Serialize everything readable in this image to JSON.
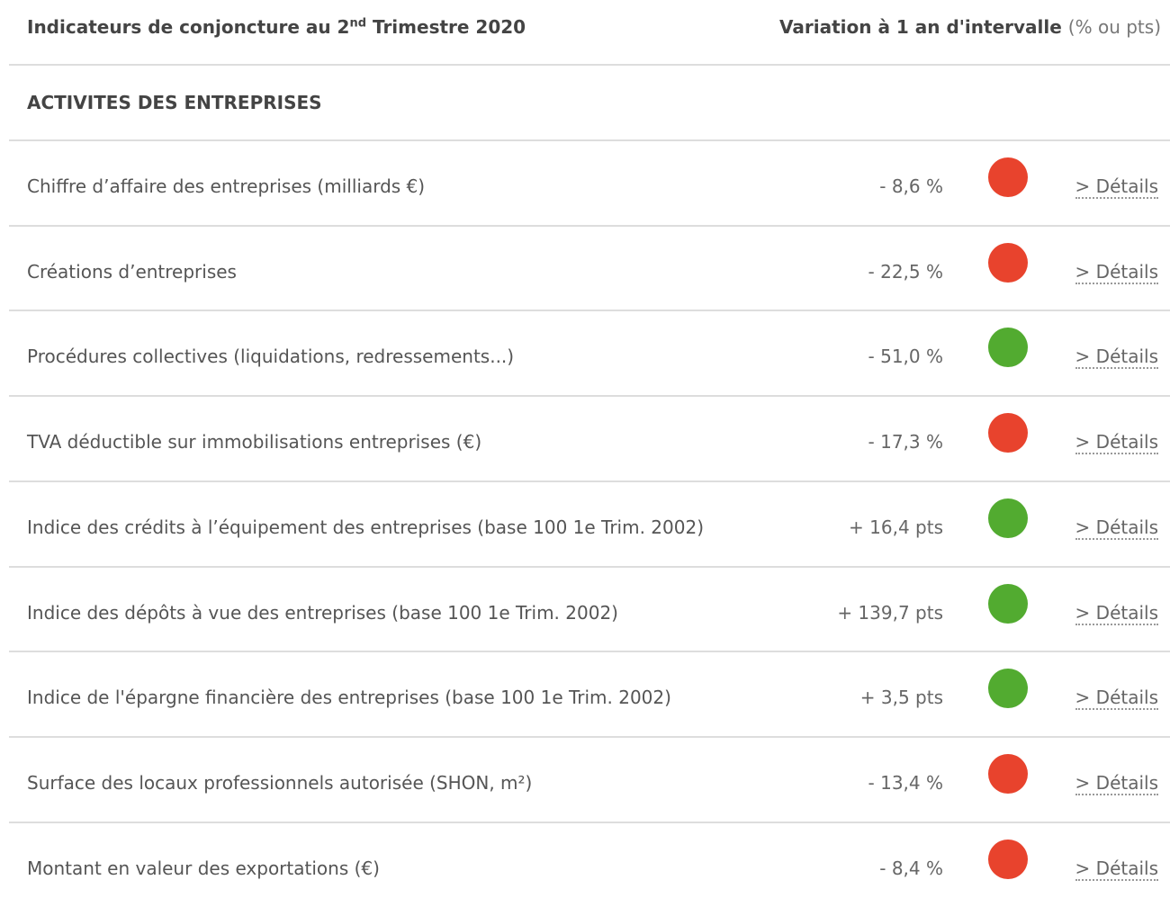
{
  "header": {
    "title": [
      "Indicateurs de conjoncture au 2",
      "nd",
      " Trimestre 2020"
    ],
    "variation": "Variation à 1 an d'intervalle",
    "unit": "(% ou pts)"
  },
  "section": "ACTIVITES DES ENTREPRISES",
  "link": "> Détails",
  "rows": [
    {
      "label": "Chiffre d’affaire des entreprises (milliards €)",
      "value": "- 8,6 %",
      "color": "#e8432d"
    },
    {
      "label": "Créations d’entreprises",
      "value": "- 22,5 %",
      "color": "#e8432d"
    },
    {
      "label": "Procédures collectives (liquidations, redressements...)",
      "value": "- 51,0 %",
      "color": "#52ab30"
    },
    {
      "label": "TVA déductible sur immobilisations entreprises (€)",
      "value": "- 17,3 %",
      "color": "#e8432d"
    },
    {
      "label": "Indice des crédits à l’équipement des entreprises (base 100 1e Trim. 2002)",
      "value": "+ 16,4 pts",
      "color": "#52ab30"
    },
    {
      "label": "Indice des dépôts à vue des entreprises (base 100 1e Trim. 2002)",
      "value": "+ 139,7 pts",
      "color": "#52ab30"
    },
    {
      "label": "Indice de l'épargne financière des entreprises (base 100 1e Trim. 2002)",
      "value": "+ 3,5 pts",
      "color": "#52ab30"
    },
    {
      "label": "Surface des locaux professionnels autorisée (SHON, m²)",
      "value": "- 13,4 %",
      "color": "#e8432d"
    },
    {
      "label": "Montant en valeur des exportations (€)",
      "value": "- 8,4 %",
      "color": "#e8432d"
    }
  ]
}
